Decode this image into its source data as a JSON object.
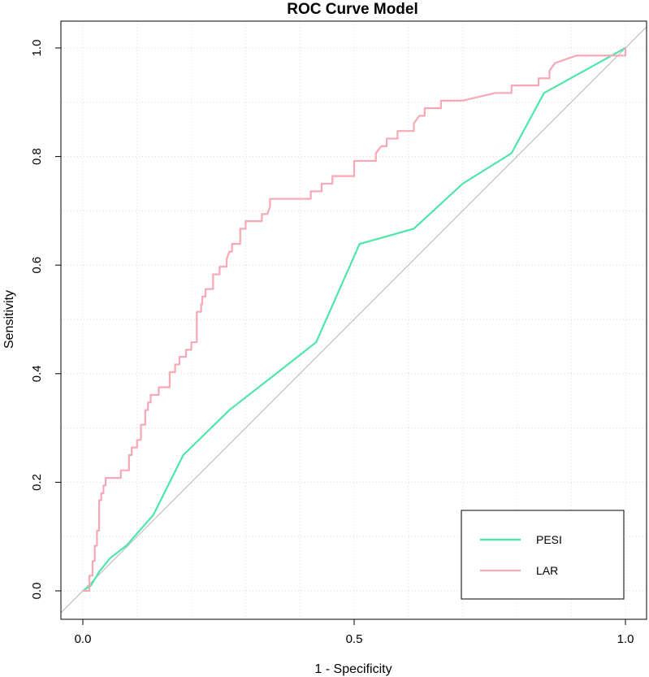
{
  "chart_data": {
    "type": "line",
    "title": "ROC Curve Model",
    "xlabel": "1 - Specificity",
    "ylabel": "Sensitivity",
    "xlim": [
      0,
      1
    ],
    "ylim": [
      0,
      1
    ],
    "x_ticks": [
      "0.0",
      "0.5",
      "1.0"
    ],
    "y_ticks": [
      "0.0",
      "0.2",
      "0.4",
      "0.6",
      "0.8",
      "1.0"
    ],
    "grid": true,
    "legend_position": "bottom-right",
    "diagonal_reference": true,
    "series": [
      {
        "name": "PESI",
        "color": "#4ee6a8",
        "x": [
          0,
          0.015,
          0.03,
          0.05,
          0.08,
          0.13,
          0.185,
          0.27,
          0.36,
          0.43,
          0.51,
          0.61,
          0.7,
          0.79,
          0.85,
          1.0
        ],
        "y": [
          0,
          0.01,
          0.035,
          0.06,
          0.083,
          0.14,
          0.25,
          0.333,
          0.403,
          0.458,
          0.639,
          0.667,
          0.75,
          0.806,
          0.917,
          1.0
        ]
      },
      {
        "name": "LAR",
        "color": "#f7a8b4",
        "x": [
          0,
          0.012,
          0.012,
          0.018,
          0.018,
          0.022,
          0.022,
          0.026,
          0.026,
          0.03,
          0.03,
          0.034,
          0.034,
          0.038,
          0.038,
          0.042,
          0.042,
          0.07,
          0.07,
          0.085,
          0.085,
          0.09,
          0.09,
          0.1,
          0.1,
          0.107,
          0.107,
          0.115,
          0.115,
          0.12,
          0.12,
          0.125,
          0.125,
          0.14,
          0.14,
          0.16,
          0.16,
          0.17,
          0.17,
          0.178,
          0.178,
          0.19,
          0.19,
          0.2,
          0.2,
          0.21,
          0.21,
          0.218,
          0.218,
          0.22,
          0.22,
          0.226,
          0.226,
          0.24,
          0.24,
          0.245,
          0.245,
          0.252,
          0.252,
          0.265,
          0.265,
          0.27,
          0.275,
          0.275,
          0.29,
          0.29,
          0.3,
          0.3,
          0.33,
          0.33,
          0.34,
          0.345,
          0.345,
          0.42,
          0.42,
          0.44,
          0.44,
          0.46,
          0.46,
          0.5,
          0.5,
          0.54,
          0.54,
          0.55,
          0.56,
          0.56,
          0.58,
          0.58,
          0.61,
          0.61,
          0.62,
          0.63,
          0.63,
          0.66,
          0.66,
          0.7,
          0.7,
          0.76,
          0.76,
          0.79,
          0.79,
          0.84,
          0.84,
          0.86,
          0.86,
          0.87,
          0.87,
          0.91,
          0.91,
          1.0,
          1.0
        ],
        "y": [
          0,
          0,
          0.028,
          0.028,
          0.055,
          0.055,
          0.083,
          0.083,
          0.111,
          0.111,
          0.167,
          0.167,
          0.18,
          0.18,
          0.194,
          0.194,
          0.208,
          0.208,
          0.222,
          0.222,
          0.25,
          0.25,
          0.264,
          0.264,
          0.278,
          0.278,
          0.306,
          0.306,
          0.333,
          0.333,
          0.347,
          0.347,
          0.361,
          0.361,
          0.375,
          0.375,
          0.403,
          0.403,
          0.417,
          0.417,
          0.431,
          0.431,
          0.444,
          0.444,
          0.458,
          0.458,
          0.514,
          0.514,
          0.528,
          0.528,
          0.542,
          0.542,
          0.556,
          0.556,
          0.583,
          0.583,
          0.583,
          0.583,
          0.597,
          0.597,
          0.611,
          0.625,
          0.625,
          0.639,
          0.639,
          0.667,
          0.667,
          0.681,
          0.681,
          0.694,
          0.694,
          0.708,
          0.722,
          0.722,
          0.736,
          0.736,
          0.75,
          0.75,
          0.764,
          0.764,
          0.792,
          0.792,
          0.806,
          0.819,
          0.819,
          0.833,
          0.833,
          0.847,
          0.847,
          0.861,
          0.875,
          0.875,
          0.889,
          0.889,
          0.903,
          0.903,
          0.903,
          0.917,
          0.917,
          0.917,
          0.931,
          0.931,
          0.944,
          0.944,
          0.958,
          0.972,
          0.972,
          0.986,
          0.986,
          0.986,
          1.0
        ]
      }
    ]
  }
}
